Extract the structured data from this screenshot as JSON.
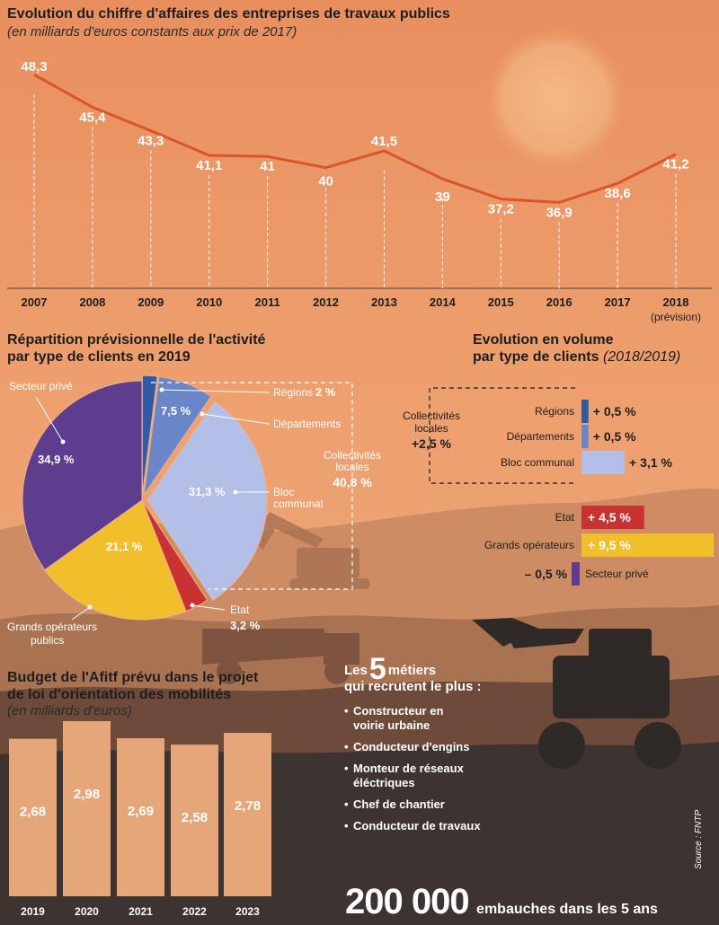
{
  "colors": {
    "line": "#d9552a",
    "regions": "#2e5aa6",
    "departements": "#6b86c8",
    "bloc_communal": "#b3bfe6",
    "etat": "#c83232",
    "grands_operateurs": "#f0bf2b",
    "secteur_prive": "#5e3d8f",
    "bars": "#e5a679"
  },
  "line_section": {
    "title": "Evolution du chiffre d'affaires des entreprises de travaux publics",
    "subtitle": "(en milliards d'euros constants aux prix de 2017)"
  },
  "pie_section": {
    "title_line1": "Répartition prévisionnelle de l'activité",
    "title_line2": "par type de clients en 2019",
    "group_label_line1": "Collectivités",
    "group_label_line2": "locales",
    "group_value": "40,8 %"
  },
  "volume_section": {
    "title_line1": "Evolution en volume",
    "title_line2": "par type de clients",
    "title_period": "(2018/2019)",
    "group_label_line1": "Collectivités",
    "group_label_line2": "locales",
    "group_value": "+2,5 %"
  },
  "bar_section": {
    "title_line1": "Budget de l'Afitf prévu dans le projet",
    "title_line2": "de loi d'orientation des mobilités",
    "subtitle": "(en milliards d'euros)"
  },
  "metiers": {
    "prefix": "Les",
    "number": "5",
    "suffix": "métiers",
    "line2": "qui recrutent le plus :",
    "items": [
      "Constructeur en voirie urbaine",
      "Conducteur d'engins",
      "Monteur de réseaux éléctriques",
      "Chef de chantier",
      "Conducteur de travaux"
    ]
  },
  "hires": {
    "number": "200 000",
    "text": "embauches dans les 5 ans"
  },
  "source": "Source : FNTP",
  "chart_data": [
    {
      "type": "line",
      "title": "Evolution du chiffre d'affaires des entreprises de travaux publics",
      "subtitle": "(en milliards d'euros constants aux prix de 2017)",
      "x": [
        "2007",
        "2008",
        "2009",
        "2010",
        "2011",
        "2012",
        "2013",
        "2014",
        "2015",
        "2016",
        "2017",
        "2018"
      ],
      "x_note_2018": "(prévision)",
      "values": [
        48.3,
        45.4,
        43.3,
        41.1,
        41,
        40,
        41.5,
        39,
        37.2,
        36.9,
        38.6,
        41.2
      ],
      "labels": [
        "48,3",
        "45,4",
        "43,3",
        "41,1",
        "41",
        "40",
        "41,5",
        "39",
        "37,2",
        "36,9",
        "38,6",
        "41,2"
      ],
      "ylim": [
        33,
        50
      ]
    },
    {
      "type": "pie",
      "title": "Répartition prévisionnelle de l'activité par type de clients en 2019",
      "slices": [
        {
          "name": "Régions",
          "value": 2,
          "label": "2 %"
        },
        {
          "name": "Départements",
          "value": 7.5,
          "label": "7,5 %"
        },
        {
          "name": "Bloc communal",
          "value": 31.3,
          "label": "31,3 %"
        },
        {
          "name": "Etat",
          "value": 3.2,
          "label": "3,2 %"
        },
        {
          "name": "Grands opérateurs publics",
          "value": 21.1,
          "label": "21,1 %"
        },
        {
          "name": "Secteur privé",
          "value": 34.9,
          "label": "34,9 %"
        }
      ]
    },
    {
      "type": "bar",
      "orientation": "horizontal",
      "title": "Evolution en volume par type de clients (2018/2019)",
      "categories": [
        "Régions",
        "Départements",
        "Bloc communal",
        "Etat",
        "Grands opérateurs",
        "Secteur privé"
      ],
      "values": [
        0.5,
        0.5,
        3.1,
        4.5,
        9.5,
        -0.5
      ],
      "labels": [
        "+ 0,5 %",
        "+ 0,5 %",
        "+ 3,1 %",
        "+ 4,5 %",
        "+ 9,5 %",
        "– 0,5 %"
      ]
    },
    {
      "type": "bar",
      "title": "Budget de l'Afitf prévu dans le projet de loi d'orientation des mobilités",
      "subtitle": "(en milliards d'euros)",
      "categories": [
        "2019",
        "2020",
        "2021",
        "2022",
        "2023"
      ],
      "values": [
        2.68,
        2.98,
        2.69,
        2.58,
        2.78
      ],
      "labels": [
        "2,68",
        "2,98",
        "2,69",
        "2,58",
        "2,78"
      ]
    }
  ]
}
